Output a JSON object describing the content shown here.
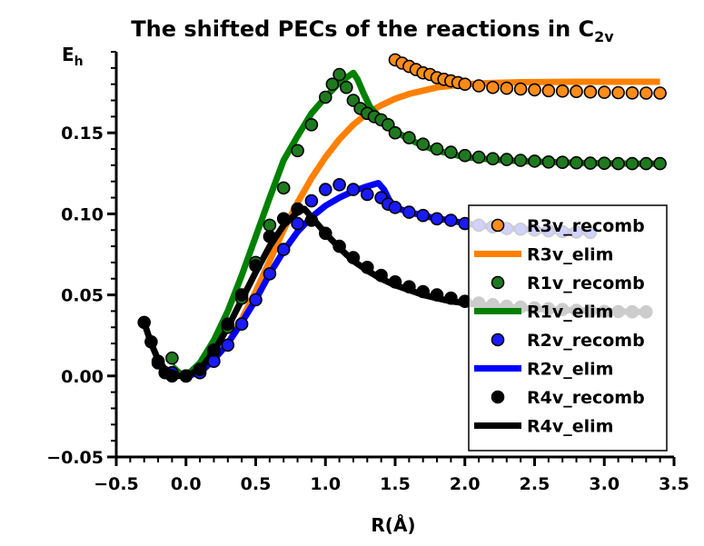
{
  "chart_data": {
    "type": "line",
    "title": "The shifted PECs of the reactions in C",
    "title_subscript": "2v",
    "xlabel": "R(Å)",
    "ylabel": "E",
    "ylabel_subscript": "h",
    "xlim": [
      -0.5,
      3.5
    ],
    "ylim": [
      -0.05,
      0.2
    ],
    "x_ticks": [
      -0.5,
      0.0,
      0.5,
      1.0,
      1.5,
      2.0,
      2.5,
      3.0,
      3.5
    ],
    "x_tick_labels": [
      "−0.5",
      "0.0",
      "0.5",
      "1.0",
      "1.5",
      "2.0",
      "2.5",
      "3.0",
      "3.5"
    ],
    "y_ticks": [
      -0.05,
      0.0,
      0.05,
      0.1,
      0.15
    ],
    "y_tick_labels": [
      "−0.05",
      "0.00",
      "0.05",
      "0.10",
      "0.15"
    ],
    "grid": false,
    "legend_position": "right",
    "series": [
      {
        "name": "R3v_elim",
        "kind": "line",
        "color": "#ff8000",
        "x": [
          0.0,
          0.1,
          0.2,
          0.3,
          0.4,
          0.5,
          0.6,
          0.7,
          0.8,
          0.9,
          1.0,
          1.1,
          1.2,
          1.3,
          1.4,
          1.5,
          1.6,
          1.7,
          1.8,
          1.9,
          2.0,
          2.2,
          2.4,
          2.6,
          2.8,
          3.0,
          3.2,
          3.4
        ],
        "y": [
          0.0,
          0.002,
          0.01,
          0.02,
          0.035,
          0.052,
          0.071,
          0.09,
          0.107,
          0.122,
          0.135,
          0.146,
          0.155,
          0.162,
          0.167,
          0.171,
          0.174,
          0.176,
          0.178,
          0.179,
          0.18,
          0.1808,
          0.1812,
          0.1814,
          0.1815,
          0.1815,
          0.1815,
          0.1815
        ]
      },
      {
        "name": "R3v_recomb",
        "kind": "points",
        "color": "#ff8c1a",
        "x": [
          1.5,
          1.55,
          1.6,
          1.65,
          1.7,
          1.75,
          1.8,
          1.85,
          1.9,
          1.95,
          2.0,
          2.1,
          2.2,
          2.3,
          2.4,
          2.5,
          2.6,
          2.7,
          2.8,
          2.9,
          3.0,
          3.1,
          3.2,
          3.3,
          3.4
        ],
        "y": [
          0.195,
          0.193,
          0.191,
          0.189,
          0.187,
          0.186,
          0.184,
          0.183,
          0.182,
          0.181,
          0.18,
          0.179,
          0.178,
          0.1775,
          0.177,
          0.1765,
          0.176,
          0.1758,
          0.1755,
          0.1752,
          0.175,
          0.1748,
          0.1746,
          0.1745,
          0.1745
        ]
      },
      {
        "name": "R1v_recomb",
        "kind": "points",
        "color": "#1f7a1f",
        "x": [
          -0.1,
          0.0,
          0.1,
          0.2,
          0.3,
          0.4,
          0.5,
          0.6,
          0.7,
          0.8,
          0.9,
          1.0,
          1.05,
          1.1,
          1.15,
          1.2,
          1.25,
          1.3,
          1.35,
          1.4,
          1.45,
          1.5,
          1.6,
          1.7,
          1.8,
          1.9,
          2.0,
          2.1,
          2.2,
          2.3,
          2.4,
          2.5,
          2.6,
          2.7,
          2.8,
          2.9,
          3.0,
          3.1,
          3.2,
          3.3,
          3.4
        ],
        "y": [
          0.011,
          0.0,
          0.004,
          0.015,
          0.03,
          0.048,
          0.07,
          0.093,
          0.116,
          0.139,
          0.155,
          0.172,
          0.18,
          0.186,
          0.178,
          0.17,
          0.165,
          0.162,
          0.16,
          0.158,
          0.155,
          0.15,
          0.147,
          0.143,
          0.14,
          0.138,
          0.136,
          0.135,
          0.134,
          0.1335,
          0.133,
          0.1325,
          0.132,
          0.1318,
          0.1315,
          0.1313,
          0.1312,
          0.131,
          0.131,
          0.131,
          0.131
        ]
      },
      {
        "name": "R1v_elim",
        "kind": "line",
        "color": "#008000",
        "x": [
          -0.1,
          -0.05,
          0.0,
          0.1,
          0.2,
          0.3,
          0.4,
          0.5,
          0.6,
          0.7,
          0.8,
          0.9,
          1.0,
          1.1,
          1.15,
          1.2,
          1.23,
          1.27,
          1.32,
          1.4,
          1.5,
          1.6,
          1.7,
          1.8,
          1.9,
          2.0,
          2.2,
          2.4,
          2.6,
          2.8,
          3.0,
          3.2,
          3.4
        ],
        "y": [
          0.006,
          0.002,
          0.0,
          0.008,
          0.022,
          0.04,
          0.062,
          0.086,
          0.11,
          0.133,
          0.148,
          0.162,
          0.172,
          0.181,
          0.184,
          0.187,
          0.183,
          0.175,
          0.166,
          0.158,
          0.151,
          0.146,
          0.142,
          0.139,
          0.137,
          0.135,
          0.1335,
          0.1325,
          0.132,
          0.1315,
          0.1312,
          0.131,
          0.131
        ]
      },
      {
        "name": "R2v_recomb",
        "kind": "points",
        "color": "#1a1aff",
        "x": [
          -0.2,
          -0.1,
          0.0,
          0.1,
          0.2,
          0.3,
          0.4,
          0.5,
          0.6,
          0.7,
          0.8,
          0.9,
          1.0,
          1.1,
          1.2,
          1.3,
          1.4,
          1.45,
          1.5,
          1.6,
          1.7,
          1.8,
          1.9,
          2.0,
          2.1,
          2.2,
          2.3,
          2.4,
          2.5,
          2.6,
          2.7,
          2.8,
          2.9
        ],
        "y": [
          0.008,
          0.002,
          0.0,
          0.002,
          0.009,
          0.019,
          0.032,
          0.047,
          0.063,
          0.078,
          0.094,
          0.108,
          0.115,
          0.118,
          0.115,
          0.112,
          0.11,
          0.106,
          0.104,
          0.101,
          0.099,
          0.097,
          0.096,
          0.094,
          0.093,
          0.092,
          0.091,
          0.0905,
          0.09,
          0.0895,
          0.089,
          0.0888,
          0.0885
        ]
      },
      {
        "name": "R2v_elim",
        "kind": "line",
        "color": "#0000ff",
        "x": [
          0.0,
          0.1,
          0.2,
          0.3,
          0.4,
          0.5,
          0.6,
          0.7,
          0.8,
          0.9,
          1.0,
          1.1,
          1.2,
          1.3,
          1.38,
          1.42,
          1.46,
          1.5,
          1.6,
          1.7,
          1.8,
          1.9,
          2.0,
          2.2,
          2.4,
          2.6,
          2.8,
          2.9
        ],
        "y": [
          0.0,
          0.002,
          0.01,
          0.02,
          0.033,
          0.047,
          0.063,
          0.077,
          0.089,
          0.098,
          0.105,
          0.11,
          0.114,
          0.117,
          0.119,
          0.115,
          0.108,
          0.104,
          0.101,
          0.099,
          0.097,
          0.096,
          0.094,
          0.092,
          0.0905,
          0.0895,
          0.089,
          0.0885
        ]
      },
      {
        "name": "R4v_recomb",
        "kind": "points",
        "color": "#000000",
        "x": [
          -0.3,
          -0.25,
          -0.2,
          -0.15,
          -0.1,
          0.0,
          0.1,
          0.2,
          0.3,
          0.4,
          0.5,
          0.6,
          0.7,
          0.8,
          0.9,
          1.0,
          1.1,
          1.2,
          1.3,
          1.4,
          1.5,
          1.6,
          1.7,
          1.8,
          1.9,
          2.0,
          2.1,
          2.2,
          2.3,
          2.4,
          2.5,
          2.6,
          2.7,
          2.8,
          2.9,
          3.0,
          3.1,
          3.2,
          3.3
        ],
        "y": [
          0.033,
          0.021,
          0.009,
          0.002,
          0.0,
          0.0,
          0.004,
          0.016,
          0.032,
          0.05,
          0.068,
          0.086,
          0.097,
          0.103,
          0.096,
          0.088,
          0.08,
          0.073,
          0.067,
          0.062,
          0.058,
          0.055,
          0.052,
          0.05,
          0.048,
          0.046,
          0.045,
          0.044,
          0.043,
          0.0425,
          0.042,
          0.0415,
          0.041,
          0.0405,
          0.04,
          0.0398,
          0.0397,
          0.0396,
          0.0395
        ]
      },
      {
        "name": "R4v_elim",
        "kind": "line",
        "color": "#000000",
        "x": [
          -0.3,
          -0.25,
          -0.2,
          -0.15,
          -0.1,
          -0.05,
          0.0,
          0.1,
          0.2,
          0.3,
          0.4,
          0.5,
          0.6,
          0.7,
          0.8,
          0.85,
          0.9,
          1.0,
          1.1,
          1.2,
          1.3,
          1.4,
          1.5,
          1.6,
          1.7,
          1.8,
          1.9,
          2.0,
          2.2,
          2.4,
          2.6,
          2.8,
          3.0,
          3.2,
          3.3
        ],
        "y": [
          0.033,
          0.02,
          0.01,
          0.004,
          0.001,
          0.0,
          0.0,
          0.004,
          0.015,
          0.03,
          0.047,
          0.064,
          0.08,
          0.093,
          0.101,
          0.103,
          0.098,
          0.088,
          0.079,
          0.071,
          0.065,
          0.06,
          0.056,
          0.053,
          0.05,
          0.048,
          0.046,
          0.045,
          0.043,
          0.042,
          0.041,
          0.0405,
          0.04,
          0.0395,
          0.0395
        ]
      }
    ],
    "legend": [
      {
        "label": "R3v_recomb",
        "kind": "point",
        "color": "#ff8c1a"
      },
      {
        "label": "R3v_elim",
        "kind": "line",
        "color": "#ff8000"
      },
      {
        "label": "R1v_recomb",
        "kind": "point",
        "color": "#1f7a1f"
      },
      {
        "label": "R1v_elim",
        "kind": "line",
        "color": "#008000"
      },
      {
        "label": "R2v_recomb",
        "kind": "point",
        "color": "#1a1aff"
      },
      {
        "label": "R2v_elim",
        "kind": "line",
        "color": "#0000ff"
      },
      {
        "label": "R4v_recomb",
        "kind": "point",
        "color": "#000000"
      },
      {
        "label": "R4v_elim",
        "kind": "line",
        "color": "#000000"
      }
    ]
  }
}
